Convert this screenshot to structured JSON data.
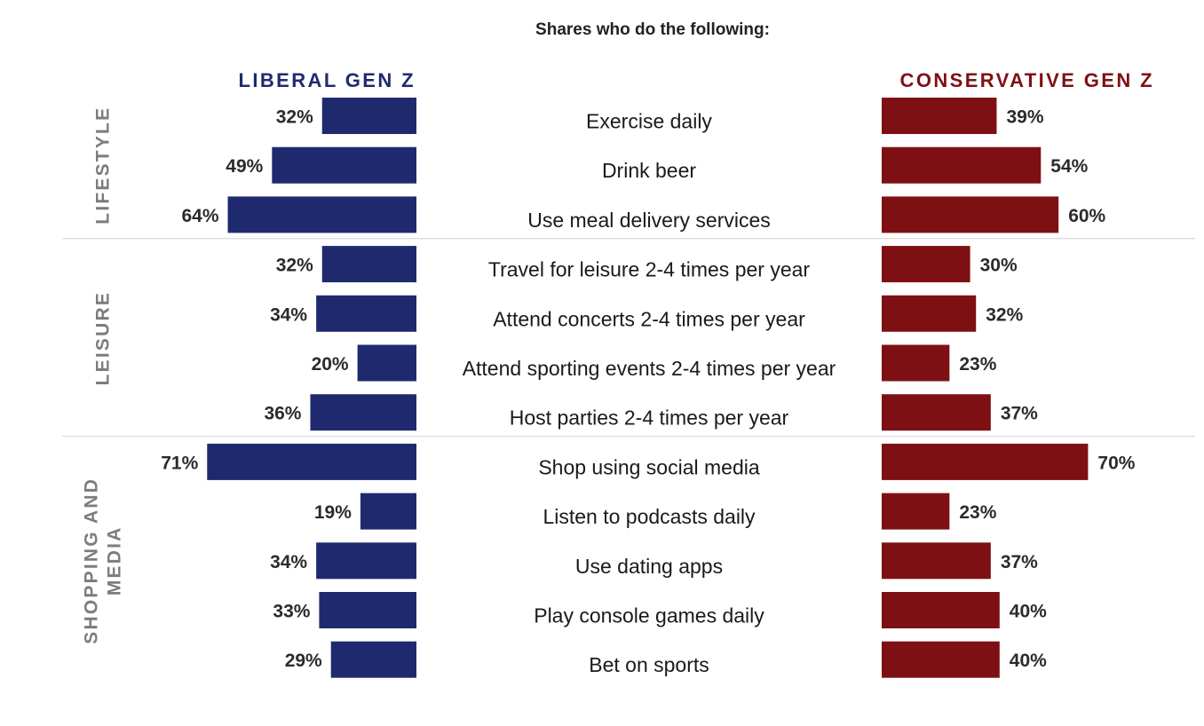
{
  "chart_data": {
    "type": "bar",
    "subtitle": "Shares who do the following:",
    "unit": "%",
    "series": [
      {
        "name": "LIBERAL GEN Z",
        "color": "#1f2a6e",
        "values": [
          32,
          49,
          64,
          32,
          34,
          20,
          36,
          71,
          19,
          34,
          33,
          29
        ]
      },
      {
        "name": "CONSERVATIVE GEN Z",
        "color": "#7e1014",
        "values": [
          39,
          54,
          60,
          30,
          32,
          23,
          37,
          70,
          23,
          37,
          40,
          40
        ]
      }
    ],
    "categories": [
      "Exercise daily",
      "Drink beer",
      "Use meal delivery services",
      "Travel for leisure 2-4 times per year",
      "Attend concerts 2-4 times per year",
      "Attend sporting events 2-4 times per year",
      "Host parties 2-4 times per year",
      "Shop using social media",
      "Listen to podcasts daily",
      "Use dating apps",
      "Play console games daily",
      "Bet on sports"
    ],
    "groups": [
      {
        "label": [
          "LIFESTYLE"
        ],
        "start": 0,
        "end": 2
      },
      {
        "label": [
          "LEISURE"
        ],
        "start": 3,
        "end": 6
      },
      {
        "label": [
          "SHOPPING AND",
          "MEDIA"
        ],
        "start": 7,
        "end": 11
      }
    ],
    "xlim": [
      0,
      100
    ],
    "grid": false,
    "legend": "top"
  }
}
